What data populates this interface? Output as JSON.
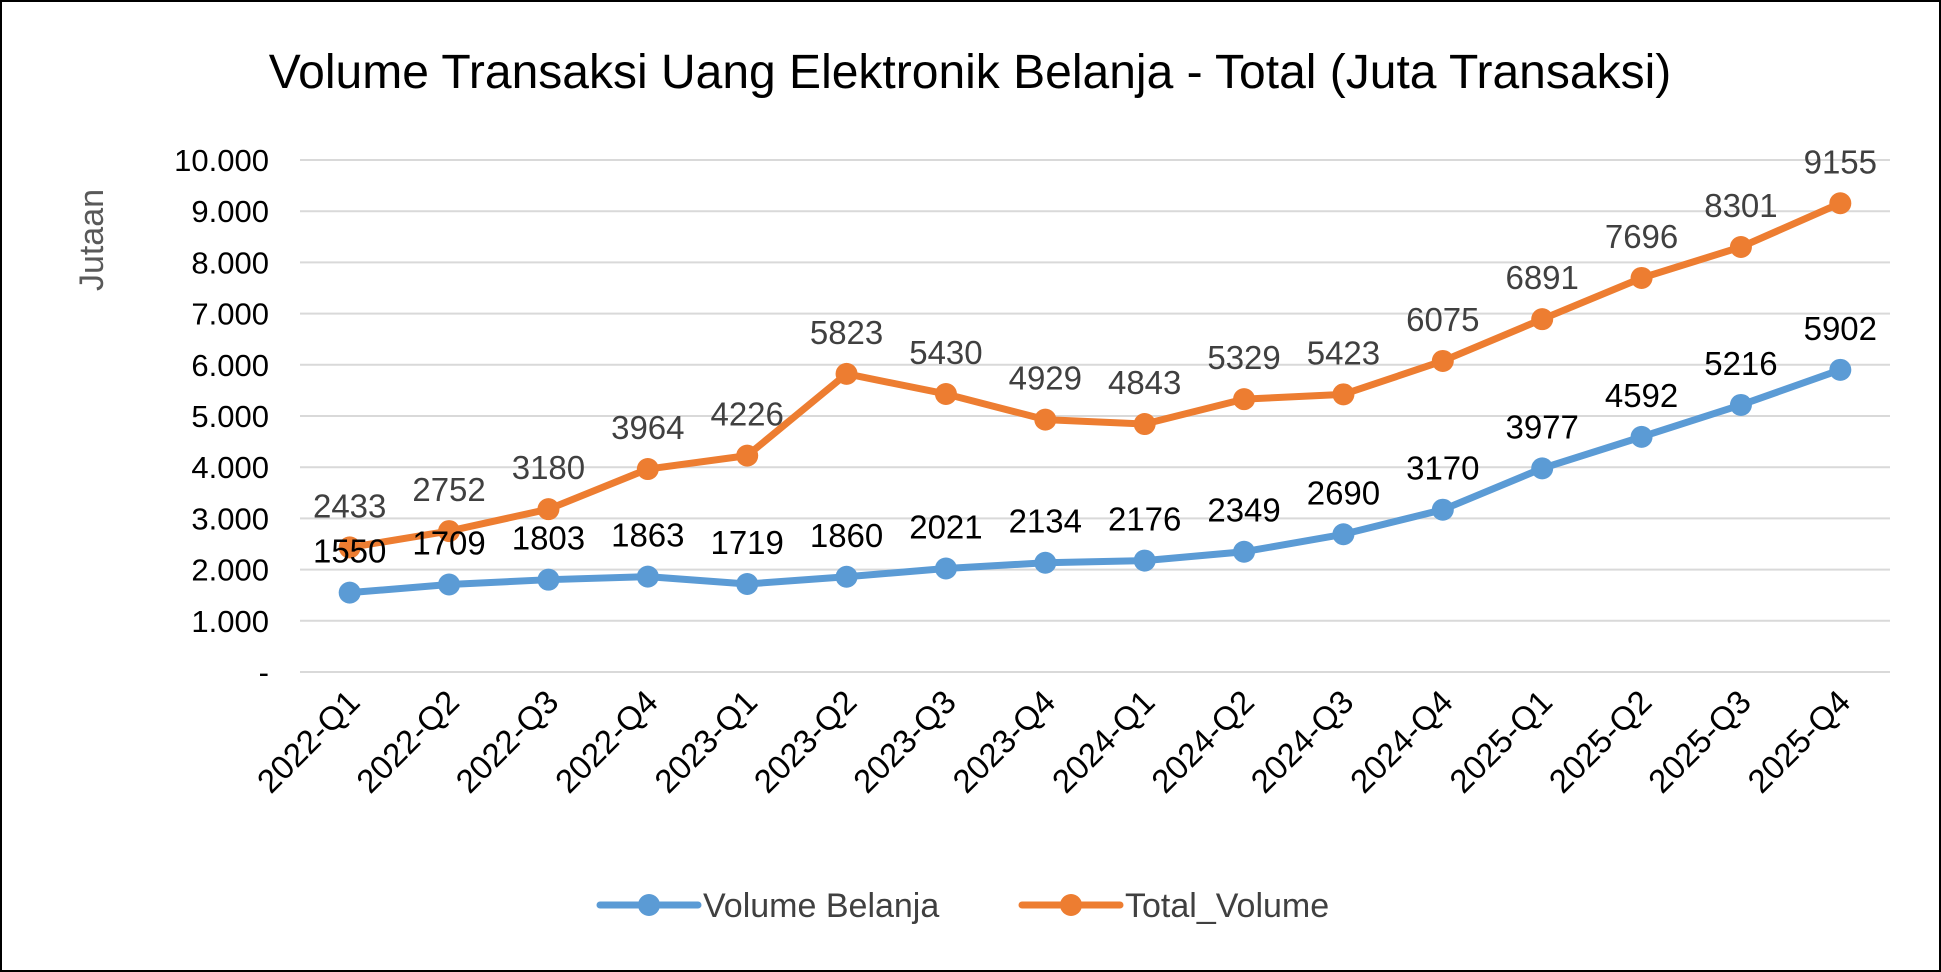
{
  "chart_data": {
    "type": "line",
    "title": "Volume Transaksi Uang Elektronik Belanja - Total (Juta Transaksi)",
    "ylabel": "Jutaan",
    "xlabel": "",
    "ylim": [
      0,
      10000
    ],
    "yticks": [
      0,
      1000,
      2000,
      3000,
      4000,
      5000,
      6000,
      7000,
      8000,
      9000,
      10000
    ],
    "ytick_labels": [
      "-",
      "1.000",
      "2.000",
      "3.000",
      "4.000",
      "5.000",
      "6.000",
      "7.000",
      "8.000",
      "9.000",
      "10.000"
    ],
    "grid": true,
    "legend_position": "bottom",
    "categories": [
      "2022-Q1",
      "2022-Q2",
      "2022-Q3",
      "2022-Q4",
      "2023-Q1",
      "2023-Q2",
      "2023-Q3",
      "2023-Q4",
      "2024-Q1",
      "2024-Q2",
      "2024-Q3",
      "2024-Q4",
      "2025-Q1",
      "2025-Q2",
      "2025-Q3",
      "2025-Q4"
    ],
    "series": [
      {
        "name": "Volume Belanja",
        "color": "#5B9BD5",
        "label_color": "#000000",
        "values": [
          1550,
          1709,
          1803,
          1863,
          1719,
          1860,
          2021,
          2134,
          2176,
          2349,
          2690,
          3170,
          3977,
          4592,
          5216,
          5902
        ]
      },
      {
        "name": "Total_Volume",
        "color": "#ED7D31",
        "label_color": "#404040",
        "values": [
          2433,
          2752,
          3180,
          3964,
          4226,
          5823,
          5430,
          4929,
          4843,
          5329,
          5423,
          6075,
          6891,
          7696,
          8301,
          9155
        ]
      }
    ]
  }
}
